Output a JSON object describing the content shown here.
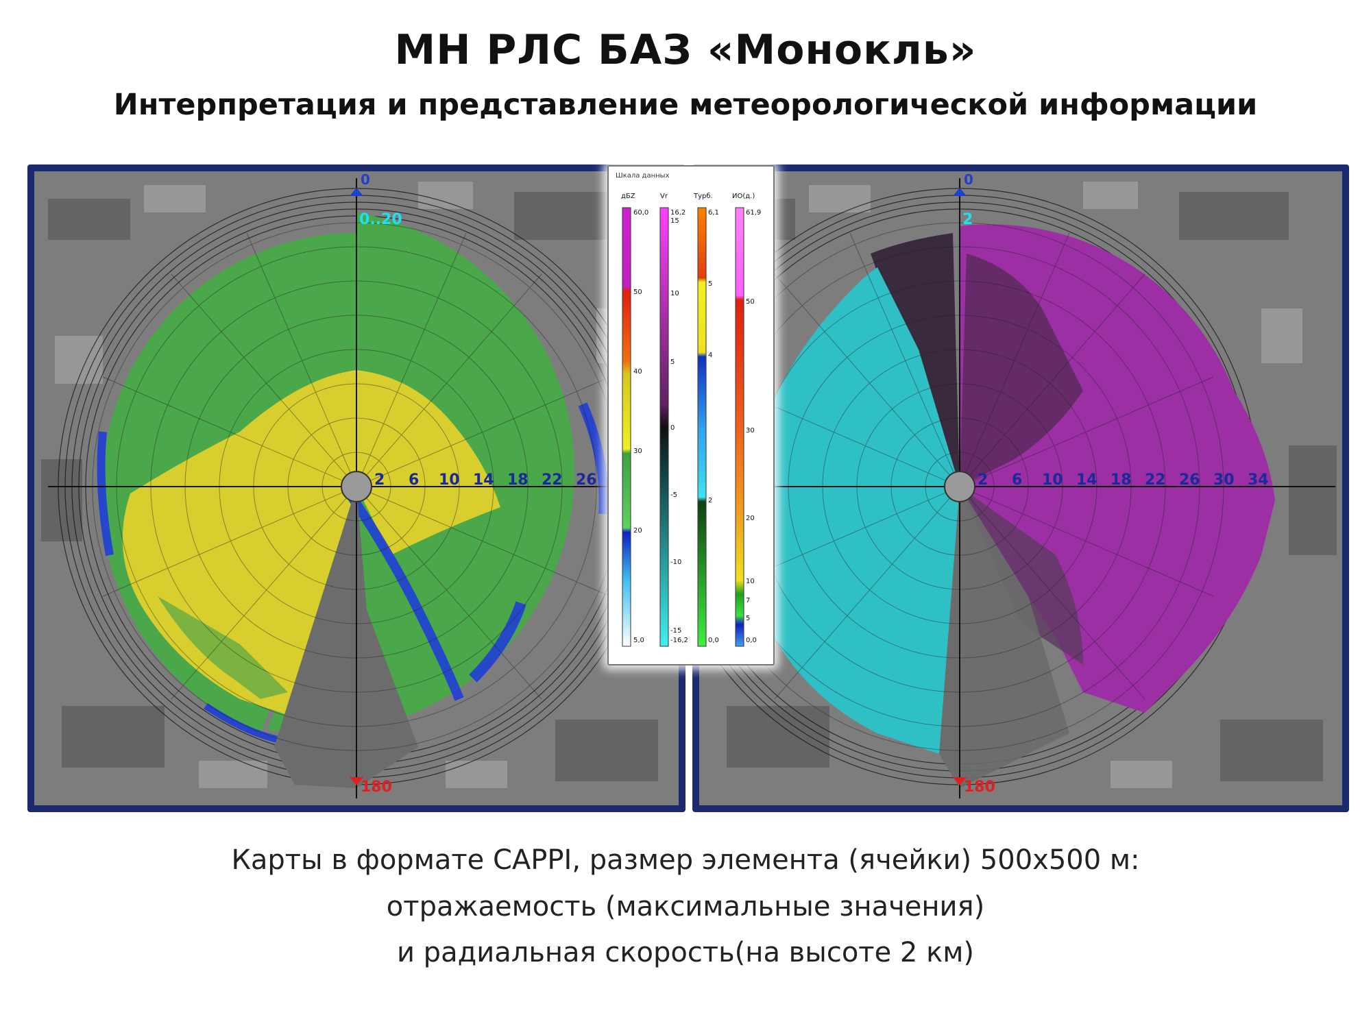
{
  "header": {
    "title": "МН РЛС БАЗ «Монокль»",
    "subtitle": "Интерпретация и представление метеорологической информации"
  },
  "left_panel": {
    "azimuth_top": "0",
    "azimuth_bottom": "180",
    "elevation_label": "0..20",
    "range_labels": [
      "2",
      "6",
      "10",
      "14",
      "18",
      "22",
      "26"
    ]
  },
  "right_panel": {
    "azimuth_top": "0",
    "azimuth_bottom": "180",
    "elevation_label": "2",
    "range_labels": [
      "2",
      "6",
      "10",
      "14",
      "18",
      "22",
      "26",
      "30",
      "34"
    ]
  },
  "data_scale": {
    "title": "Шкала данных",
    "columns": [
      {
        "name": "дБZ",
        "max": "60,0",
        "min": "5,0",
        "ticks": [
          "50",
          "40",
          "30",
          "20"
        ]
      },
      {
        "name": "Vr",
        "max": "16,2",
        "max2": "15",
        "min": "-16,2",
        "min2": "-15",
        "ticks": [
          "10",
          "5",
          "0",
          "-5",
          "-10"
        ]
      },
      {
        "name": "Турб.",
        "max": "6,1",
        "min": "0,0",
        "ticks": [
          "5",
          "4",
          "2"
        ]
      },
      {
        "name": "ИО(д.)",
        "max": "61,9",
        "min": "0,0",
        "ticks": [
          "50",
          "30",
          "20",
          "10",
          "7",
          "5"
        ]
      }
    ]
  },
  "caption": {
    "line1": "Карты в формате CAPPI, размер элемента (ячейки) 500x500 м:",
    "line2": "отражаемость (максимальные значения)",
    "line3": "и радиальная скорость(на высоте 2 км)"
  },
  "colors": {
    "frame": "#1a2a6c",
    "map_background": "#7a7a7a",
    "reflectivity_yellow": "#d8cf2e",
    "reflectivity_green": "#4aa84a",
    "reflectivity_blue": "#1f3dd6",
    "velocity_cyan": "#2fc0c6",
    "velocity_magenta": "#9b2fa3",
    "azimuth_marker_top": "#2040d0",
    "azimuth_marker_bottom": "#e02020"
  }
}
